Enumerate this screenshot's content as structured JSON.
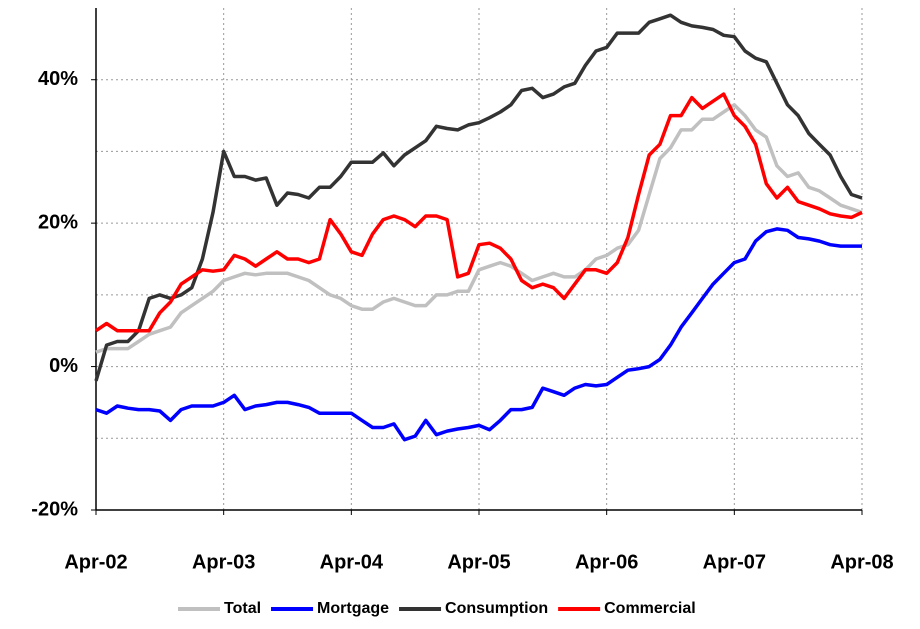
{
  "chart_data": {
    "type": "line",
    "categories": [
      "Apr-02",
      null,
      null,
      null,
      null,
      null,
      null,
      null,
      null,
      null,
      null,
      null,
      "Apr-03",
      null,
      null,
      null,
      null,
      null,
      null,
      null,
      null,
      null,
      null,
      null,
      "Apr-04",
      null,
      null,
      null,
      null,
      null,
      null,
      null,
      null,
      null,
      null,
      null,
      "Apr-05",
      null,
      null,
      null,
      null,
      null,
      null,
      null,
      null,
      null,
      null,
      null,
      "Apr-06",
      null,
      null,
      null,
      null,
      null,
      null,
      null,
      null,
      null,
      null,
      null,
      "Apr-07",
      null,
      null,
      null,
      null,
      null,
      null,
      null,
      null,
      null,
      null,
      null,
      "Apr-08"
    ],
    "series": [
      {
        "name": "Total",
        "color": "#c0c0c0",
        "values": [
          2,
          2.5,
          2.5,
          2.5,
          3.5,
          4.5,
          5,
          5.5,
          7.5,
          8.5,
          9.5,
          10.5,
          12,
          12.5,
          13,
          12.8,
          13,
          13,
          13,
          12.5,
          12,
          11,
          10,
          9.5,
          8.5,
          8,
          8,
          9,
          9.5,
          9,
          8.5,
          8.5,
          10,
          10,
          10.5,
          10.5,
          13.5,
          14,
          14.5,
          14,
          13,
          12,
          12.5,
          13,
          12.5,
          12.5,
          13.5,
          15,
          15.5,
          16.5,
          17,
          19,
          24,
          29,
          30.5,
          33,
          33,
          34.5,
          34.5,
          35.5,
          36.5,
          35,
          33,
          32,
          28,
          26.5,
          27,
          25,
          24.5,
          23.5,
          22.5,
          22,
          21.5
        ]
      },
      {
        "name": "Mortgage",
        "color": "#0000ff",
        "values": [
          -6,
          -6.5,
          -5.5,
          -5.8,
          -6,
          -6,
          -6.2,
          -7.5,
          -6,
          -5.5,
          -5.5,
          -5.5,
          -5,
          -4,
          -6,
          -5.5,
          -5.3,
          -5,
          -5,
          -5.3,
          -5.7,
          -6.5,
          -6.5,
          -6.5,
          -6.5,
          -7.5,
          -8.5,
          -8.5,
          -8,
          -10.2,
          -9.7,
          -7.5,
          -9.5,
          -9,
          -8.7,
          -8.5,
          -8.2,
          -8.8,
          -7.5,
          -6,
          -6,
          -5.7,
          -3,
          -3.5,
          -4,
          -3,
          -2.5,
          -2.7,
          -2.5,
          -1.5,
          -0.5,
          -0.3,
          0,
          1,
          3,
          5.5,
          7.5,
          9.5,
          11.5,
          13,
          14.5,
          15,
          17.5,
          18.8,
          19.2,
          19,
          18,
          17.8,
          17.5,
          17,
          16.8,
          16.8,
          16.8
        ]
      },
      {
        "name": "Consumption",
        "color": "#333333",
        "values": [
          -2,
          3,
          3.5,
          3.5,
          5,
          9.5,
          10,
          9.5,
          10,
          11,
          15,
          21.5,
          30,
          26.5,
          26.5,
          26,
          26.3,
          22.5,
          24.2,
          24,
          23.5,
          25,
          25,
          26.5,
          28.5,
          28.5,
          28.5,
          29.8,
          28,
          29.5,
          30.5,
          31.5,
          33.5,
          33.2,
          33,
          33.7,
          34,
          34.7,
          35.5,
          36.5,
          38.5,
          38.8,
          37.5,
          38,
          39,
          39.5,
          42,
          44,
          44.5,
          46.5,
          46.5,
          46.5,
          48,
          48.5,
          49,
          48,
          47.5,
          47.3,
          47,
          46.2,
          46,
          44,
          43,
          42.5,
          39.5,
          36.5,
          35,
          32.5,
          31,
          29.5,
          26.5,
          24,
          23.5
        ]
      },
      {
        "name": "Commercial",
        "color": "#ff0000",
        "values": [
          5,
          6,
          5,
          5,
          5,
          5,
          7.5,
          9,
          11.5,
          12.5,
          13.5,
          13.3,
          13.5,
          15.5,
          15,
          14,
          15,
          16,
          15,
          15,
          14.5,
          15,
          20.5,
          18.5,
          16,
          15.5,
          18.5,
          20.5,
          21,
          20.5,
          19.5,
          21,
          21,
          20.5,
          12.5,
          13,
          17,
          17.2,
          16.5,
          15,
          12,
          11,
          11.5,
          11,
          9.5,
          11.5,
          13.5,
          13.5,
          13,
          14.5,
          18,
          24,
          29.5,
          31,
          35,
          35,
          37.5,
          36,
          37,
          38,
          35,
          33.5,
          31,
          25.5,
          23.5,
          25,
          23,
          22.5,
          22,
          21.3,
          21,
          20.8,
          21.5
        ]
      }
    ],
    "ylim": [
      -20,
      50
    ],
    "yticks": [
      {
        "value": -20,
        "label": "-20%"
      },
      {
        "value": 0,
        "label": "0%"
      },
      {
        "value": 20,
        "label": "20%"
      },
      {
        "value": 40,
        "label": "40%"
      }
    ],
    "minor_yticks": [
      -10,
      10,
      30
    ],
    "grid": true,
    "legend": "bottom"
  }
}
